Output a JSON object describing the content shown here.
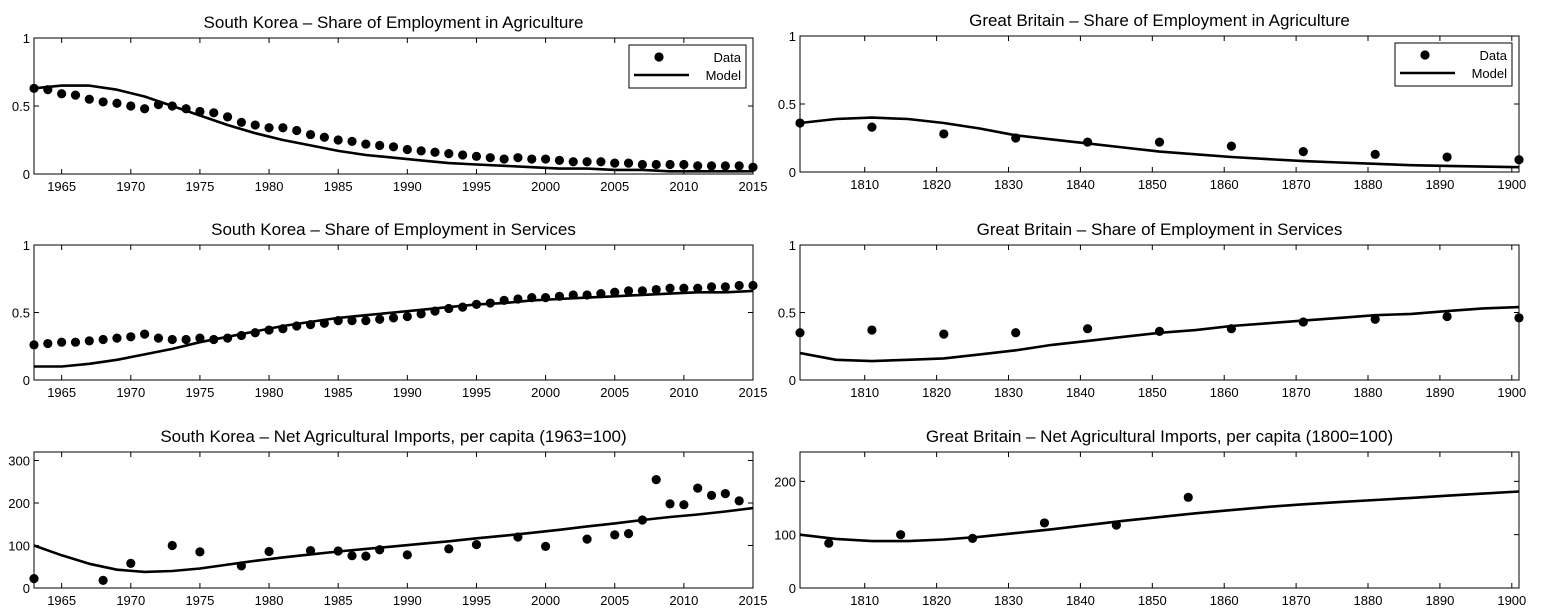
{
  "chart_data": [
    {
      "type": "scatter",
      "title": "South Korea – Share of Employment in Agriculture",
      "xlabel": "",
      "ylabel": "",
      "xlim": [
        1963,
        2015
      ],
      "ylim": [
        0,
        1
      ],
      "xticks": [
        1965,
        1970,
        1975,
        1980,
        1985,
        1990,
        1995,
        2000,
        2005,
        2010,
        2015
      ],
      "yticks": [
        0,
        0.5,
        1
      ],
      "legend": {
        "position": "top-right",
        "entries": [
          "Data",
          "Model"
        ]
      },
      "series": [
        {
          "name": "Data",
          "kind": "points",
          "x": [
            1963,
            1964,
            1965,
            1966,
            1967,
            1968,
            1969,
            1970,
            1971,
            1972,
            1973,
            1974,
            1975,
            1976,
            1977,
            1978,
            1979,
            1980,
            1981,
            1982,
            1983,
            1984,
            1985,
            1986,
            1987,
            1988,
            1989,
            1990,
            1991,
            1992,
            1993,
            1994,
            1995,
            1996,
            1997,
            1998,
            1999,
            2000,
            2001,
            2002,
            2003,
            2004,
            2005,
            2006,
            2007,
            2008,
            2009,
            2010,
            2011,
            2012,
            2013,
            2014,
            2015
          ],
          "y": [
            0.63,
            0.62,
            0.59,
            0.58,
            0.55,
            0.53,
            0.52,
            0.5,
            0.48,
            0.51,
            0.5,
            0.48,
            0.46,
            0.45,
            0.42,
            0.38,
            0.36,
            0.34,
            0.34,
            0.32,
            0.29,
            0.27,
            0.25,
            0.24,
            0.22,
            0.21,
            0.2,
            0.18,
            0.17,
            0.16,
            0.15,
            0.14,
            0.13,
            0.12,
            0.11,
            0.12,
            0.11,
            0.11,
            0.1,
            0.09,
            0.09,
            0.09,
            0.08,
            0.08,
            0.07,
            0.07,
            0.07,
            0.07,
            0.06,
            0.06,
            0.06,
            0.06,
            0.05
          ]
        },
        {
          "name": "Model",
          "kind": "line",
          "x": [
            1963,
            1965,
            1967,
            1969,
            1971,
            1973,
            1975,
            1977,
            1979,
            1981,
            1983,
            1985,
            1987,
            1989,
            1991,
            1993,
            1995,
            1997,
            1999,
            2001,
            2003,
            2005,
            2007,
            2009,
            2011,
            2013,
            2015
          ],
          "y": [
            0.63,
            0.65,
            0.65,
            0.62,
            0.57,
            0.5,
            0.43,
            0.36,
            0.3,
            0.25,
            0.21,
            0.17,
            0.14,
            0.12,
            0.1,
            0.08,
            0.07,
            0.06,
            0.05,
            0.04,
            0.04,
            0.03,
            0.03,
            0.02,
            0.02,
            0.02,
            0.02
          ]
        }
      ]
    },
    {
      "type": "scatter",
      "title": "Great Britain – Share of Employment in Agriculture",
      "xlabel": "",
      "ylabel": "",
      "xlim": [
        1801,
        1901
      ],
      "ylim": [
        0,
        1
      ],
      "xticks": [
        1810,
        1820,
        1830,
        1840,
        1850,
        1860,
        1870,
        1880,
        1890,
        1900
      ],
      "yticks": [
        0,
        0.5,
        1
      ],
      "legend": {
        "position": "top-right",
        "entries": [
          "Data",
          "Model"
        ]
      },
      "series": [
        {
          "name": "Data",
          "kind": "points",
          "x": [
            1801,
            1811,
            1821,
            1831,
            1841,
            1851,
            1861,
            1871,
            1881,
            1891,
            1901
          ],
          "y": [
            0.36,
            0.33,
            0.28,
            0.25,
            0.22,
            0.22,
            0.19,
            0.15,
            0.13,
            0.11,
            0.09
          ]
        },
        {
          "name": "Model",
          "kind": "line",
          "x": [
            1801,
            1806,
            1811,
            1816,
            1821,
            1826,
            1831,
            1836,
            1841,
            1846,
            1851,
            1856,
            1861,
            1866,
            1871,
            1876,
            1881,
            1886,
            1891,
            1896,
            1901
          ],
          "y": [
            0.36,
            0.39,
            0.4,
            0.39,
            0.36,
            0.32,
            0.27,
            0.24,
            0.21,
            0.18,
            0.15,
            0.13,
            0.11,
            0.095,
            0.08,
            0.07,
            0.06,
            0.05,
            0.045,
            0.04,
            0.035
          ]
        }
      ]
    },
    {
      "type": "scatter",
      "title": "South Korea – Share of Employment in Services",
      "xlabel": "",
      "ylabel": "",
      "xlim": [
        1963,
        2015
      ],
      "ylim": [
        0,
        1
      ],
      "xticks": [
        1965,
        1970,
        1975,
        1980,
        1985,
        1990,
        1995,
        2000,
        2005,
        2010,
        2015
      ],
      "yticks": [
        0,
        0.5,
        1
      ],
      "series": [
        {
          "name": "Data",
          "kind": "points",
          "x": [
            1963,
            1964,
            1965,
            1966,
            1967,
            1968,
            1969,
            1970,
            1971,
            1972,
            1973,
            1974,
            1975,
            1976,
            1977,
            1978,
            1979,
            1980,
            1981,
            1982,
            1983,
            1984,
            1985,
            1986,
            1987,
            1988,
            1989,
            1990,
            1991,
            1992,
            1993,
            1994,
            1995,
            1996,
            1997,
            1998,
            1999,
            2000,
            2001,
            2002,
            2003,
            2004,
            2005,
            2006,
            2007,
            2008,
            2009,
            2010,
            2011,
            2012,
            2013,
            2014,
            2015
          ],
          "y": [
            0.26,
            0.27,
            0.28,
            0.28,
            0.29,
            0.3,
            0.31,
            0.32,
            0.34,
            0.31,
            0.3,
            0.3,
            0.31,
            0.3,
            0.31,
            0.33,
            0.35,
            0.37,
            0.38,
            0.4,
            0.41,
            0.42,
            0.44,
            0.44,
            0.44,
            0.45,
            0.46,
            0.47,
            0.49,
            0.51,
            0.53,
            0.54,
            0.56,
            0.57,
            0.59,
            0.6,
            0.61,
            0.61,
            0.62,
            0.63,
            0.63,
            0.64,
            0.65,
            0.66,
            0.66,
            0.67,
            0.68,
            0.68,
            0.68,
            0.69,
            0.69,
            0.7,
            0.7
          ]
        },
        {
          "name": "Model",
          "kind": "line",
          "x": [
            1963,
            1965,
            1967,
            1969,
            1971,
            1973,
            1975,
            1977,
            1979,
            1981,
            1983,
            1985,
            1987,
            1989,
            1991,
            1993,
            1995,
            1997,
            1999,
            2001,
            2003,
            2005,
            2007,
            2009,
            2011,
            2013,
            2015
          ],
          "y": [
            0.1,
            0.1,
            0.12,
            0.15,
            0.19,
            0.23,
            0.28,
            0.32,
            0.36,
            0.4,
            0.43,
            0.46,
            0.48,
            0.5,
            0.52,
            0.54,
            0.56,
            0.57,
            0.59,
            0.6,
            0.61,
            0.62,
            0.63,
            0.64,
            0.65,
            0.65,
            0.66
          ]
        }
      ]
    },
    {
      "type": "scatter",
      "title": "Great Britain – Share of Employment in Services",
      "xlabel": "",
      "ylabel": "",
      "xlim": [
        1801,
        1901
      ],
      "ylim": [
        0,
        1
      ],
      "xticks": [
        1810,
        1820,
        1830,
        1840,
        1850,
        1860,
        1870,
        1880,
        1890,
        1900
      ],
      "yticks": [
        0,
        0.5,
        1
      ],
      "series": [
        {
          "name": "Data",
          "kind": "points",
          "x": [
            1801,
            1811,
            1821,
            1831,
            1841,
            1851,
            1861,
            1871,
            1881,
            1891,
            1901
          ],
          "y": [
            0.35,
            0.37,
            0.34,
            0.35,
            0.38,
            0.36,
            0.38,
            0.43,
            0.45,
            0.47,
            0.46
          ]
        },
        {
          "name": "Model",
          "kind": "line",
          "x": [
            1801,
            1806,
            1811,
            1816,
            1821,
            1826,
            1831,
            1836,
            1841,
            1846,
            1851,
            1856,
            1861,
            1866,
            1871,
            1876,
            1881,
            1886,
            1891,
            1896,
            1901
          ],
          "y": [
            0.2,
            0.15,
            0.14,
            0.15,
            0.16,
            0.19,
            0.22,
            0.26,
            0.29,
            0.32,
            0.35,
            0.37,
            0.4,
            0.42,
            0.44,
            0.46,
            0.48,
            0.49,
            0.51,
            0.53,
            0.54
          ]
        }
      ]
    },
    {
      "type": "scatter",
      "title": "South Korea – Net Agricultural Imports, per capita (1963=100)",
      "xlabel": "",
      "ylabel": "",
      "xlim": [
        1963,
        2015
      ],
      "ylim": [
        0,
        320
      ],
      "xticks": [
        1965,
        1970,
        1975,
        1980,
        1985,
        1990,
        1995,
        2000,
        2005,
        2010,
        2015
      ],
      "yticks": [
        0,
        100,
        200,
        300
      ],
      "series": [
        {
          "name": "Data",
          "kind": "points",
          "x": [
            1963,
            1968,
            1970,
            1973,
            1975,
            1978,
            1980,
            1983,
            1985,
            1986,
            1987,
            1988,
            1990,
            1993,
            1995,
            1998,
            2000,
            2003,
            2005,
            2006,
            2007,
            2008,
            2009,
            2010,
            2011,
            2012,
            2013,
            2014
          ],
          "y": [
            22,
            18,
            58,
            100,
            85,
            52,
            86,
            88,
            87,
            76,
            75,
            90,
            78,
            92,
            102,
            120,
            98,
            115,
            125,
            128,
            160,
            255,
            198,
            196,
            235,
            218,
            222,
            205
          ]
        },
        {
          "name": "Model",
          "kind": "line",
          "x": [
            1963,
            1965,
            1967,
            1969,
            1971,
            1973,
            1975,
            1977,
            1979,
            1981,
            1983,
            1985,
            1987,
            1989,
            1991,
            1993,
            1995,
            1997,
            1999,
            2001,
            2003,
            2005,
            2007,
            2009,
            2011,
            2013,
            2015
          ],
          "y": [
            100,
            77,
            57,
            43,
            38,
            40,
            46,
            55,
            64,
            72,
            79,
            86,
            92,
            98,
            104,
            110,
            117,
            123,
            130,
            137,
            145,
            152,
            160,
            167,
            173,
            180,
            188
          ]
        }
      ]
    },
    {
      "type": "scatter",
      "title": "Great Britain – Net Agricultural Imports, per capita (1800=100)",
      "xlabel": "",
      "ylabel": "",
      "xlim": [
        1801,
        1901
      ],
      "ylim": [
        0,
        255
      ],
      "xticks": [
        1810,
        1820,
        1830,
        1840,
        1850,
        1860,
        1870,
        1880,
        1890,
        1900
      ],
      "yticks": [
        0,
        100,
        200
      ],
      "series": [
        {
          "name": "Data",
          "kind": "points",
          "x": [
            1805,
            1815,
            1825,
            1835,
            1845,
            1855
          ],
          "y": [
            84,
            100,
            93,
            122,
            118,
            170
          ]
        },
        {
          "name": "Model",
          "kind": "line",
          "x": [
            1801,
            1806,
            1811,
            1816,
            1821,
            1826,
            1831,
            1836,
            1841,
            1846,
            1851,
            1856,
            1861,
            1866,
            1871,
            1876,
            1881,
            1886,
            1891,
            1896,
            1901
          ],
          "y": [
            100,
            92,
            88,
            88,
            91,
            96,
            103,
            110,
            118,
            126,
            133,
            140,
            146,
            152,
            157,
            161,
            165,
            169,
            173,
            177,
            181
          ]
        }
      ]
    }
  ]
}
